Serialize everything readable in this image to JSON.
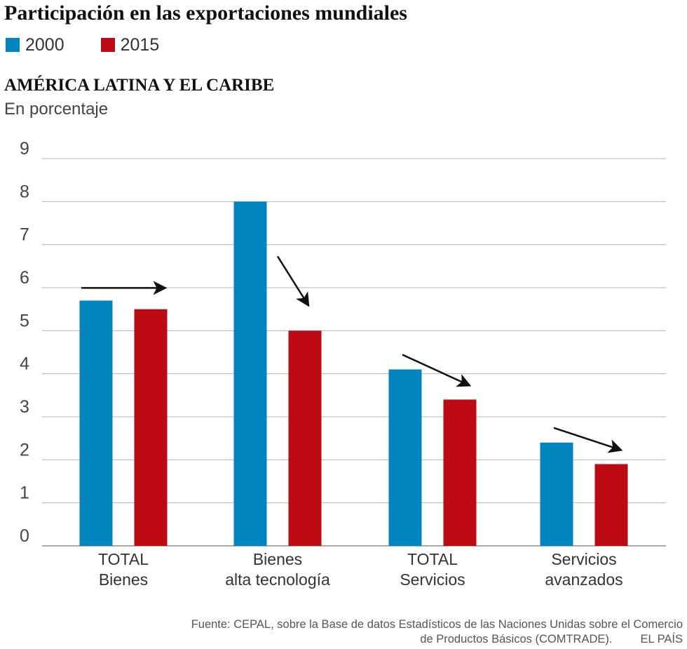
{
  "header": {
    "title": "Participación en las exportaciones mundiales",
    "subtitle": "AMÉRICA LATINA Y EL CARIBE",
    "unit": "En porcentaje"
  },
  "legend": [
    {
      "label": "2000",
      "color": "#0085be"
    },
    {
      "label": "2015",
      "color": "#bd0a13"
    }
  ],
  "footer": {
    "source_line1": "Fuente: CEPAL, sobre la Base de datos Estadísticos de las Naciones Unidas sobre el Comercio",
    "source_line2": "de Productos Básicos (COMTRADE).",
    "brand": "EL PAÍS"
  },
  "chart_data": {
    "type": "bar",
    "title": "Participación en las exportaciones mundiales",
    "subtitle": "AMÉRICA LATINA Y EL CARIBE",
    "ylabel": "En porcentaje",
    "xlabel": "",
    "ylim": [
      0,
      9
    ],
    "yticks": [
      "0",
      "1",
      "2",
      "3",
      "4",
      "5",
      "6",
      "7",
      "8",
      "9"
    ],
    "grid": true,
    "legend_position": "top-left",
    "categories": [
      [
        "TOTAL",
        "Bienes"
      ],
      [
        "Bienes",
        "alta tecnología"
      ],
      [
        "TOTAL",
        "Servicios"
      ],
      [
        "Servicios",
        "avanzados"
      ]
    ],
    "series": [
      {
        "name": "2000",
        "color": "#0085be",
        "values": [
          5.7,
          8.0,
          4.1,
          2.4
        ]
      },
      {
        "name": "2015",
        "color": "#bd0a13",
        "values": [
          5.5,
          5.0,
          3.4,
          1.9
        ]
      }
    ],
    "trend_arrows": [
      "flat",
      "down",
      "down",
      "down"
    ]
  }
}
